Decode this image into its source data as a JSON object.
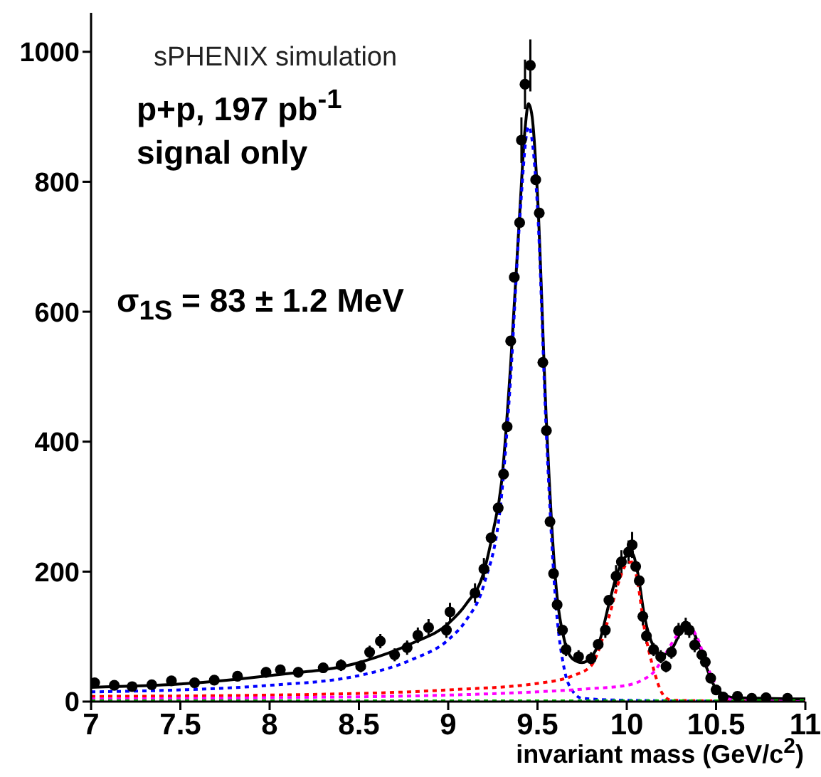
{
  "chart_data": {
    "type": "scatter",
    "xlabel": "invariant mass (GeV/c$^{2}$)",
    "annotations": [
      "sPHENIX simulation",
      "p+p, 197 pb$^{-1}$",
      "signal only",
      "σ$_{1S}$ = 83  ± 1.2 MeV"
    ],
    "xlim": [
      7,
      11
    ],
    "xticks": [
      7,
      7.5,
      8,
      8.5,
      9,
      9.5,
      10,
      10.5,
      11
    ],
    "ylim": [
      0,
      1060
    ],
    "yticks": [
      0,
      200,
      400,
      600,
      800,
      1000
    ],
    "grid": false,
    "legend": false,
    "series": [
      {
        "marker": "circle",
        "color": "#000000",
        "x": [
          7.02,
          7.13,
          7.23,
          7.34,
          7.45,
          7.58,
          7.69,
          7.82,
          7.98,
          8.06,
          8.16,
          8.3,
          8.4,
          8.51,
          8.56,
          8.62,
          8.7,
          8.77,
          8.83,
          8.89,
          8.99,
          9.01,
          9.15,
          9.2,
          9.24,
          9.28,
          9.31,
          9.33,
          9.35,
          9.37,
          9.4,
          9.41,
          9.43,
          9.46,
          9.49,
          9.51,
          9.53,
          9.55,
          9.57,
          9.59,
          9.61,
          9.64,
          9.66,
          9.73,
          9.8,
          9.84,
          9.88,
          9.9,
          9.94,
          9.97,
          10.01,
          10.03,
          10.05,
          10.07,
          10.09,
          10.11,
          10.15,
          10.19,
          10.22,
          10.25,
          10.29,
          10.33,
          10.35,
          10.38,
          10.42,
          10.44,
          10.47,
          10.5,
          10.54,
          10.62,
          10.7,
          10.78,
          10.9
        ],
        "values": [
          29,
          25,
          23,
          26,
          32,
          29,
          33,
          39,
          45,
          49,
          45,
          52,
          56,
          54,
          76,
          93,
          72,
          83,
          102,
          114,
          110,
          138,
          167,
          204,
          252,
          298,
          350,
          423,
          555,
          653,
          737,
          864,
          950,
          979,
          803,
          752,
          522,
          417,
          277,
          197,
          149,
          110,
          80,
          69,
          66,
          88,
          110,
          156,
          193,
          215,
          230,
          241,
          208,
          186,
          131,
          101,
          80,
          69,
          54,
          76,
          109,
          116,
          110,
          87,
          72,
          61,
          36,
          18,
          7,
          8,
          5,
          6,
          5
        ],
        "errors": [
          6,
          6,
          6,
          6,
          7,
          null,
          7,
          7,
          8,
          8,
          8,
          8,
          9,
          9,
          10,
          11,
          10,
          11,
          12,
          13,
          12,
          14,
          15,
          17,
          null,
          null,
          null,
          null,
          null,
          null,
          null,
          35,
          38,
          40,
          null,
          null,
          null,
          null,
          null,
          null,
          null,
          null,
          10,
          10,
          10,
          null,
          12,
          null,
          17,
          18,
          18,
          20,
          null,
          null,
          14,
          12,
          10,
          10,
          9,
          10,
          12,
          13,
          12,
          11,
          null,
          null,
          null,
          5,
          3,
          3,
          3,
          3,
          3
        ]
      },
      {
        "type": "line",
        "color": "#000000",
        "line_style": "solid",
        "x": [
          7,
          7.5,
          8,
          8.5,
          8.8,
          9,
          9.1,
          9.2,
          9.25,
          9.3,
          9.35,
          9.4,
          9.43,
          9.45,
          9.47,
          9.5,
          9.55,
          9.6,
          9.65,
          9.7,
          9.75,
          9.8,
          9.85,
          9.9,
          9.95,
          10,
          10.03,
          10.06,
          10.1,
          10.15,
          10.2,
          10.25,
          10.3,
          10.35,
          10.4,
          10.45,
          10.5,
          10.6,
          11
        ],
        "values": [
          22,
          27,
          40,
          60,
          90,
          120,
          150,
          200,
          260,
          340,
          520,
          750,
          880,
          920,
          900,
          780,
          430,
          190,
          95,
          65,
          60,
          68,
          95,
          150,
          200,
          225,
          228,
          200,
          130,
          85,
          72,
          80,
          105,
          115,
          90,
          50,
          20,
          6,
          4
        ]
      },
      {
        "type": "line",
        "color": "#0000ff",
        "line_style": "dotted",
        "x": [
          7,
          7.5,
          8,
          8.5,
          8.8,
          9,
          9.1,
          9.2,
          9.3,
          9.35,
          9.4,
          9.45,
          9.5,
          9.55,
          9.6,
          9.65,
          9.7,
          9.75,
          10,
          11
        ],
        "values": [
          15,
          18,
          25,
          40,
          65,
          95,
          125,
          180,
          320,
          500,
          740,
          885,
          760,
          410,
          160,
          50,
          15,
          5,
          2,
          0
        ]
      },
      {
        "type": "line",
        "color": "#ff0000",
        "line_style": "dotted",
        "x": [
          7,
          8,
          9,
          9.5,
          9.7,
          9.8,
          9.9,
          9.95,
          10,
          10.03,
          10.06,
          10.1,
          10.15,
          10.2,
          10.25,
          11
        ],
        "values": [
          8,
          10,
          18,
          28,
          40,
          55,
          130,
          180,
          212,
          215,
          185,
          110,
          50,
          12,
          2,
          0
        ]
      },
      {
        "type": "line",
        "color": "#ff00ff",
        "line_style": "dotted",
        "x": [
          7,
          8,
          9,
          9.5,
          9.8,
          10,
          10.1,
          10.15,
          10.22,
          10.3,
          10.35,
          10.4,
          10.45,
          10.5,
          10.55,
          10.6,
          11
        ],
        "values": [
          4,
          6,
          10,
          15,
          20,
          25,
          35,
          45,
          75,
          108,
          115,
          95,
          55,
          25,
          8,
          2,
          0
        ]
      },
      {
        "type": "line",
        "color": "#00cc00",
        "line_style": "dotted",
        "x": [
          7,
          11
        ],
        "values": [
          1,
          1
        ]
      }
    ]
  }
}
